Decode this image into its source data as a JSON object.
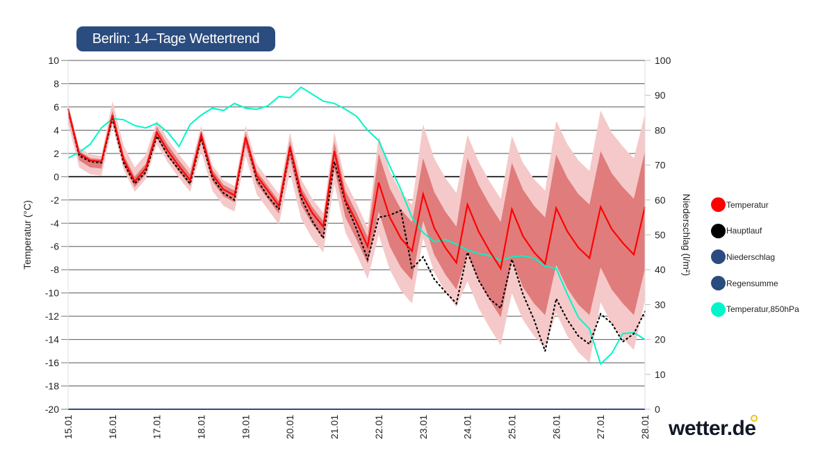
{
  "header": {
    "title": "Berlin: 14–Tage Wettertrend"
  },
  "logo": {
    "text": "wetter.de",
    "accent": "#f4c20d"
  },
  "legend": [
    {
      "label": "Temperatur",
      "color": "#ff0000"
    },
    {
      "label": "Hauptlauf",
      "color": "#000000"
    },
    {
      "label": "Niederschlag",
      "color": "#2b4c7e"
    },
    {
      "label": "Regensumme",
      "color": "#2b4c7e"
    },
    {
      "label": "Temperatur,850hPa",
      "color": "#00f5c8"
    }
  ],
  "chart_data": {
    "type": "line",
    "ylabel": "Temperatur (°C)",
    "y2label": "Niederschlag (l/m²)",
    "ylim": [
      -20,
      10
    ],
    "y2lim": [
      0,
      100
    ],
    "yticks": [
      "10",
      "8",
      "6",
      "4",
      "2",
      "0",
      "-2",
      "-4",
      "-6",
      "-8",
      "-10",
      "-12",
      "-14",
      "-16",
      "-18",
      "-20"
    ],
    "y2ticks": [
      "100",
      "90",
      "80",
      "70",
      "60",
      "50",
      "40",
      "30",
      "20",
      "10",
      "0"
    ],
    "xticks": [
      "15.01",
      "16.01",
      "17.01",
      "18.01",
      "19.01",
      "20.01",
      "21.01",
      "22.01",
      "23.01",
      "24.01",
      "25.01",
      "26.01",
      "27.01",
      "28.01"
    ],
    "points_per_day": 4,
    "grid": true,
    "legend_position": "right",
    "colors": {
      "temperature": "#ff0000",
      "hauptlauf": "#000000",
      "t850": "#00f5c8",
      "band_inner": "#e07c7c",
      "band_outer": "#f5c9c9",
      "precip": "#2b4c7e"
    },
    "series": [
      {
        "name": "Temperatur",
        "values": [
          5.8,
          2.0,
          1.4,
          1.3,
          5.3,
          1.5,
          -0.4,
          0.7,
          3.8,
          2.2,
          0.9,
          -0.3,
          3.6,
          0.2,
          -1.1,
          -1.6,
          3.4,
          0.1,
          -1.2,
          -2.5,
          2.6,
          -1.4,
          -3.1,
          -4.3,
          2.2,
          -2.0,
          -3.9,
          -6.0,
          -0.5,
          -3.5,
          -5.3,
          -6.4,
          -1.5,
          -4.4,
          -6.1,
          -7.4,
          -2.4,
          -4.7,
          -6.4,
          -7.9,
          -2.8,
          -5.1,
          -6.5,
          -7.5,
          -2.7,
          -4.7,
          -6.1,
          -7.0,
          -2.6,
          -4.5,
          -5.7,
          -6.7,
          -2.6
        ]
      },
      {
        "name": "Hauptlauf",
        "values": [
          5.8,
          1.8,
          1.3,
          1.2,
          5.0,
          1.2,
          -0.6,
          0.4,
          3.5,
          1.8,
          0.6,
          -0.6,
          3.3,
          -0.1,
          -1.4,
          -2.0,
          3.4,
          -0.2,
          -1.7,
          -2.8,
          2.4,
          -1.8,
          -3.8,
          -5.3,
          1.3,
          -2.2,
          -4.5,
          -7.1,
          -3.5,
          -3.3,
          -2.9,
          -7.9,
          -6.9,
          -8.8,
          -9.9,
          -10.9,
          -6.5,
          -8.9,
          -10.5,
          -11.3,
          -7.1,
          -10.1,
          -12.3,
          -15.0,
          -10.5,
          -12.3,
          -13.7,
          -14.4,
          -11.8,
          -12.6,
          -14.2,
          -13.5,
          -11.6
        ]
      },
      {
        "name": "Temperatur,850hPa",
        "values": [
          1.6,
          2.1,
          2.8,
          4.2,
          5.0,
          4.9,
          4.4,
          4.2,
          4.6,
          3.8,
          2.6,
          4.5,
          5.3,
          5.9,
          5.7,
          6.3,
          5.9,
          5.8,
          6.1,
          6.9,
          6.8,
          7.7,
          7.1,
          6.5,
          6.3,
          5.8,
          5.2,
          4.0,
          3.1,
          0.9,
          -1.1,
          -3.5,
          -4.8,
          -5.6,
          -5.4,
          -5.8,
          -6.3,
          -6.6,
          -6.8,
          -7.2,
          -6.9,
          -6.8,
          -7.0,
          -7.7,
          -7.9,
          -10.1,
          -12.1,
          -13.1,
          -16.1,
          -15.2,
          -13.5,
          -13.4,
          -14.0
        ]
      },
      {
        "name": "Niederschlag",
        "values_l_m2": [
          0,
          0,
          0,
          0,
          0,
          0,
          0,
          0,
          0,
          0,
          0,
          0,
          0,
          0
        ]
      }
    ],
    "bands": {
      "inner_upper": [
        6.0,
        2.2,
        1.6,
        1.5,
        5.7,
        1.9,
        0.0,
        1.1,
        4.3,
        2.7,
        1.4,
        0.2,
        4.0,
        0.6,
        -0.7,
        -1.2,
        3.8,
        0.5,
        -0.8,
        -2.1,
        3.1,
        -0.9,
        -2.6,
        -3.8,
        3.0,
        -1.2,
        -3.1,
        -5.2,
        2.0,
        -1.0,
        -2.8,
        -3.9,
        1.6,
        -1.3,
        -3.0,
        -4.3,
        1.6,
        -0.7,
        -2.4,
        -3.9,
        1.2,
        -1.1,
        -2.5,
        -3.5,
        1.9,
        -0.1,
        -1.5,
        -2.4,
        2.2,
        0.3,
        -0.9,
        -1.9,
        2.2
      ],
      "inner_lower": [
        5.2,
        1.4,
        0.8,
        0.7,
        4.8,
        1.0,
        -0.9,
        0.2,
        3.3,
        1.7,
        0.4,
        -0.8,
        3.0,
        -0.4,
        -1.7,
        -2.2,
        2.7,
        -0.6,
        -1.9,
        -3.2,
        1.6,
        -2.4,
        -4.1,
        -5.3,
        0.7,
        -3.5,
        -5.4,
        -7.5,
        -3.0,
        -6.0,
        -7.8,
        -8.9,
        -3.8,
        -6.7,
        -8.4,
        -9.7,
        -6.6,
        -8.9,
        -10.6,
        -12.1,
        -7.2,
        -9.5,
        -10.9,
        -11.9,
        -7.6,
        -9.6,
        -11.0,
        -11.9,
        -7.8,
        -9.7,
        -10.9,
        -11.9,
        -7.9
      ],
      "outer_upper": [
        6.3,
        2.5,
        1.9,
        1.8,
        6.5,
        2.7,
        0.8,
        1.9,
        4.8,
        3.2,
        1.9,
        0.7,
        4.4,
        1.0,
        -0.3,
        -0.8,
        4.4,
        1.1,
        -0.2,
        -1.5,
        3.8,
        -0.2,
        -1.9,
        -3.1,
        3.8,
        -0.4,
        -2.3,
        -4.4,
        3.5,
        0.5,
        -1.3,
        -2.4,
        4.5,
        1.6,
        -0.1,
        -1.4,
        3.6,
        1.3,
        -0.4,
        -1.9,
        3.5,
        1.2,
        -0.2,
        -1.2,
        4.8,
        2.8,
        1.4,
        0.5,
        5.7,
        3.8,
        2.6,
        1.6,
        5.4
      ],
      "outer_lower": [
        4.6,
        0.8,
        0.2,
        0.1,
        4.4,
        0.6,
        -1.3,
        -0.2,
        2.8,
        1.2,
        -0.1,
        -1.3,
        2.2,
        -1.2,
        -2.5,
        -3.0,
        1.8,
        -1.5,
        -2.8,
        -4.1,
        0.4,
        -3.6,
        -5.3,
        -6.5,
        -0.6,
        -4.8,
        -6.7,
        -8.8,
        -5.0,
        -8.0,
        -9.8,
        -10.9,
        -5.3,
        -8.2,
        -9.9,
        -11.2,
        -9.0,
        -11.3,
        -13.0,
        -14.5,
        -10.0,
        -12.3,
        -13.7,
        -14.7,
        -11.7,
        -13.7,
        -15.1,
        -16.0,
        -10.8,
        -12.7,
        -13.9,
        -14.9,
        -10.6
      ]
    }
  }
}
